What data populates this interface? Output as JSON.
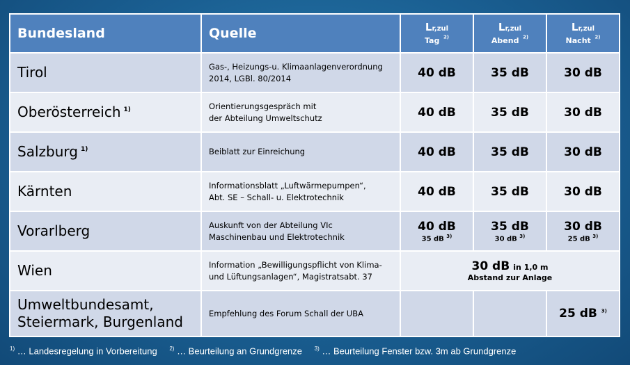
{
  "header": {
    "state": "Bundesland",
    "source": "Quelle",
    "limits": [
      {
        "symbol": "L",
        "sub": "r,zul",
        "period": "Tag",
        "note": "2)"
      },
      {
        "symbol": "L",
        "sub": "r,zul",
        "period": "Abend",
        "note": "2)"
      },
      {
        "symbol": "L",
        "sub": "r,zul",
        "period": "Nacht",
        "note": "2)"
      }
    ]
  },
  "rows": [
    {
      "state": "Tirol",
      "note": "",
      "source_l1": "Gas-, Heizungs-u. Klimaanlagenverordnung",
      "source_l2": "2014, LGBl. 80/2014",
      "day": "40 dB",
      "evening": "35 dB",
      "night": "30 dB"
    },
    {
      "state": "Oberösterreich",
      "note": "1)",
      "source_l1": "Orientierungsgespräch mit",
      "source_l2": "der Abteilung Umweltschutz",
      "day": "40 dB",
      "evening": "35 dB",
      "night": "30 dB"
    },
    {
      "state": "Salzburg",
      "note": "1)",
      "source_l1": "Beiblatt zur Einreichung",
      "source_l2": "",
      "day": "40 dB",
      "evening": "35 dB",
      "night": "30 dB"
    },
    {
      "state": "Kärnten",
      "note": "",
      "source_l1": "Informationsblatt „Luftwärmepumpen“,",
      "source_l2": "Abt. SE – Schall- u. Elektrotechnik",
      "day": "40 dB",
      "evening": "35 dB",
      "night": "30 dB"
    },
    {
      "state": "Vorarlberg",
      "note": "",
      "source_l1": "Auskunft von der Abteilung VIc",
      "source_l2": "Maschinenbau und Elektrotechnik",
      "day": "40 dB",
      "evening": "35 dB",
      "night": "30 dB",
      "day_sub": "35 dB",
      "evening_sub": "30 dB",
      "night_sub": "25 dB",
      "sub_note": "3)"
    },
    {
      "state": "Wien",
      "note": "",
      "source_l1": "Information „Bewilligungspflicht von Klima-",
      "source_l2": "und Lüftungsanlagen“, Magistratsabt. 37",
      "combined_value": "30 dB",
      "combined_suffix": "in 1,0 m",
      "combined_l2": "Abstand zur Anlage"
    },
    {
      "state_l1": "Umweltbundesamt,",
      "state_l2": "Steiermark, Burgenland",
      "source_l1": "Empfehlung des Forum Schall der UBA",
      "day": "",
      "evening": "",
      "night": "25 dB",
      "night_note": "3)"
    }
  ],
  "footnotes": [
    {
      "mark": "1)",
      "text": "… Landesregelung in Vorbereitung"
    },
    {
      "mark": "2)",
      "text": "… Beurteilung an Grundgrenze"
    },
    {
      "mark": "3)",
      "text": "… Beurteilung Fenster bzw. 3m ab Grundgrenze"
    }
  ],
  "colors": {
    "header_bg": "#4f81bd",
    "row_odd": "#d0d8e8",
    "row_even": "#e9edf4",
    "background": "#1a5f92"
  }
}
